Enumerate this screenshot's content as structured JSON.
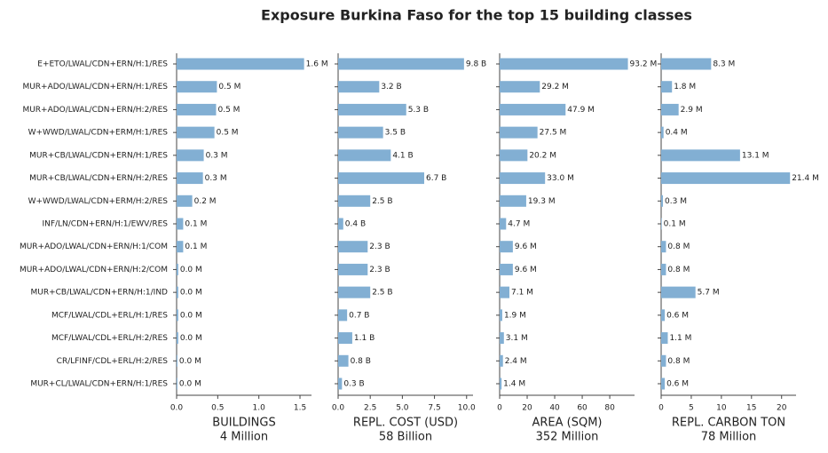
{
  "title": "Exposure Burkina Faso for the top 15 building classes",
  "chart_data": [
    {
      "type": "barh",
      "color": "#82afd3",
      "xlabel": "BUILDINGS",
      "total": "4 Million",
      "categories": [
        "E+ETO/LWAL/CDN+ERN/H:1/RES",
        "MUR+ADO/LWAL/CDN+ERN/H:1/RES",
        "MUR+ADO/LWAL/CDN+ERN/H:2/RES",
        "W+WWD/LWAL/CDN+ERM/H:1/RES",
        "MUR+CB/LWAL/CDN+ERN/H:1/RES",
        "MUR+CB/LWAL/CDN+ERN/H:2/RES",
        "W+WWD/LWAL/CDN+ERM/H:2/RES",
        "INF/LN/CDN+ERN/H:1/EWV/RES",
        "MUR+ADO/LWAL/CDN+ERN/H:1/COM",
        "MUR+ADO/LWAL/CDN+ERN/H:2/COM",
        "MUR+CB/LWAL/CDN+ERN/H:1/IND",
        "MCF/LWAL/CDL+ERL/H:1/RES",
        "MCF/LWAL/CDL+ERL/H:2/RES",
        "CR/LFINF/CDL+ERL/H:2/RES",
        "MUR+CL/LWAL/CDN+ERN/H:1/RES"
      ],
      "values": [
        1.55,
        0.49,
        0.48,
        0.46,
        0.33,
        0.32,
        0.19,
        0.08,
        0.08,
        0.02,
        0.02,
        0.02,
        0.02,
        0.01,
        0.01
      ],
      "value_labels": [
        "1.6 M",
        "0.5 M",
        "0.5 M",
        "0.5 M",
        "0.3 M",
        "0.3 M",
        "0.2 M",
        "0.1 M",
        "0.1 M",
        "0.0 M",
        "0.0 M",
        "0.0 M",
        "0.0 M",
        "0.0 M",
        "0.0 M"
      ],
      "xlim": [
        0,
        1.64
      ],
      "xticks": [
        {
          "value": 0,
          "label": "0.0"
        },
        0.5,
        {
          "value": 1,
          "label": "1.0"
        },
        1.5
      ]
    },
    {
      "type": "barh",
      "color": "#82afd3",
      "xlabel": "REPL. COST (USD)",
      "total": "58 Billion",
      "values": [
        9.8,
        3.2,
        5.3,
        3.5,
        4.1,
        6.7,
        2.5,
        0.4,
        2.3,
        2.3,
        2.5,
        0.7,
        1.1,
        0.8,
        0.3
      ],
      "value_labels": [
        "9.8 B",
        "3.2 B",
        "5.3 B",
        "3.5 B",
        "4.1 B",
        "6.7 B",
        "2.5 B",
        "0.4 B",
        "2.3 B",
        "2.3 B",
        "2.5 B",
        "0.7 B",
        "1.1 B",
        "0.8 B",
        "0.3 B"
      ],
      "xlim": [
        0,
        10.5
      ],
      "xticks": [
        {
          "value": 0,
          "label": "0.0"
        },
        2.5,
        {
          "value": 5,
          "label": "5.0"
        },
        7.5,
        {
          "value": 10,
          "label": "10.0"
        }
      ]
    },
    {
      "type": "barh",
      "color": "#82afd3",
      "xlabel": "AREA (SQM)",
      "total": "352 Million",
      "values": [
        93.2,
        29.2,
        47.9,
        27.5,
        20.2,
        33,
        19.3,
        4.7,
        9.6,
        9.6,
        7.1,
        1.9,
        3.1,
        2.4,
        1.4
      ],
      "value_labels": [
        "93.2 M",
        "29.2 M",
        "47.9 M",
        "27.5 M",
        "20.2 M",
        "33.0 M",
        "19.3 M",
        "4.7 M",
        "9.6 M",
        "9.6 M",
        "7.1 M",
        "1.9 M",
        "3.1 M",
        "2.4 M",
        "1.4 M"
      ],
      "xlim": [
        0,
        98
      ],
      "xticks": [
        0,
        20,
        40,
        60,
        80
      ]
    },
    {
      "type": "barh",
      "color": "#82afd3",
      "xlabel": "REPL. CARBON TON",
      "total": "78 Million",
      "values": [
        8.3,
        1.8,
        2.9,
        0.4,
        13.1,
        21.4,
        0.3,
        0.1,
        0.8,
        0.8,
        5.7,
        0.6,
        1.1,
        0.8,
        0.6
      ],
      "value_labels": [
        "8.3 M",
        "1.8 M",
        "2.9 M",
        "0.4 M",
        "13.1 M",
        "21.4 M",
        "0.3 M",
        "0.1 M",
        "0.8 M",
        "0.8 M",
        "5.7 M",
        "0.6 M",
        "1.1 M",
        "0.8 M",
        "0.6 M"
      ],
      "xlim": [
        0,
        22.4
      ],
      "xticks": [
        0,
        5,
        10,
        15,
        20
      ]
    }
  ]
}
